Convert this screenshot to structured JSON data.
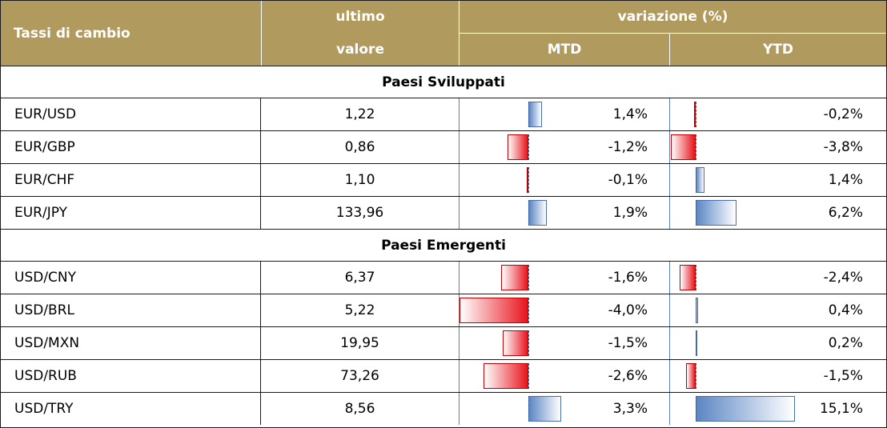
{
  "header": {
    "col1": "Tassi di cambio",
    "col2_line1": "ultimo",
    "col2_line2": "valore",
    "group": "variazione (%)",
    "mtd": "MTD",
    "ytd": "YTD"
  },
  "sections": [
    {
      "title": "Paesi Sviluppati",
      "rows": [
        {
          "pair": "EUR/USD",
          "value": "1,22",
          "mtd": 1.4,
          "mtd_label": "1,4%",
          "ytd": -0.2,
          "ytd_label": "-0,2%"
        },
        {
          "pair": "EUR/GBP",
          "value": "0,86",
          "mtd": -1.2,
          "mtd_label": "-1,2%",
          "ytd": -3.8,
          "ytd_label": "-3,8%"
        },
        {
          "pair": "EUR/CHF",
          "value": "1,10",
          "mtd": -0.1,
          "mtd_label": "-0,1%",
          "ytd": 1.4,
          "ytd_label": "1,4%"
        },
        {
          "pair": "EUR/JPY",
          "value": "133,96",
          "mtd": 1.9,
          "mtd_label": "1,9%",
          "ytd": 6.2,
          "ytd_label": "6,2%"
        }
      ]
    },
    {
      "title": "Paesi Emergenti",
      "rows": [
        {
          "pair": "USD/CNY",
          "value": "6,37",
          "mtd": -1.6,
          "mtd_label": "-1,6%",
          "ytd": -2.4,
          "ytd_label": "-2,4%"
        },
        {
          "pair": "USD/BRL",
          "value": "5,22",
          "mtd": -4.0,
          "mtd_label": "-4,0%",
          "ytd": 0.4,
          "ytd_label": "0,4%"
        },
        {
          "pair": "USD/MXN",
          "value": "19,95",
          "mtd": -1.5,
          "mtd_label": "-1,5%",
          "ytd": 0.2,
          "ytd_label": "0,2%"
        },
        {
          "pair": "USD/RUB",
          "value": "73,26",
          "mtd": -2.6,
          "mtd_label": "-2,6%",
          "ytd": -1.5,
          "ytd_label": "-1,5%"
        },
        {
          "pair": "USD/TRY",
          "value": "8,56",
          "mtd": 3.3,
          "mtd_label": "3,3%",
          "ytd": 15.1,
          "ytd_label": "15,1%"
        }
      ]
    }
  ],
  "colors": {
    "header_bg": "#b09a5e",
    "positive_bar": "#5b86c4",
    "negative_bar": "#e8141c"
  }
}
